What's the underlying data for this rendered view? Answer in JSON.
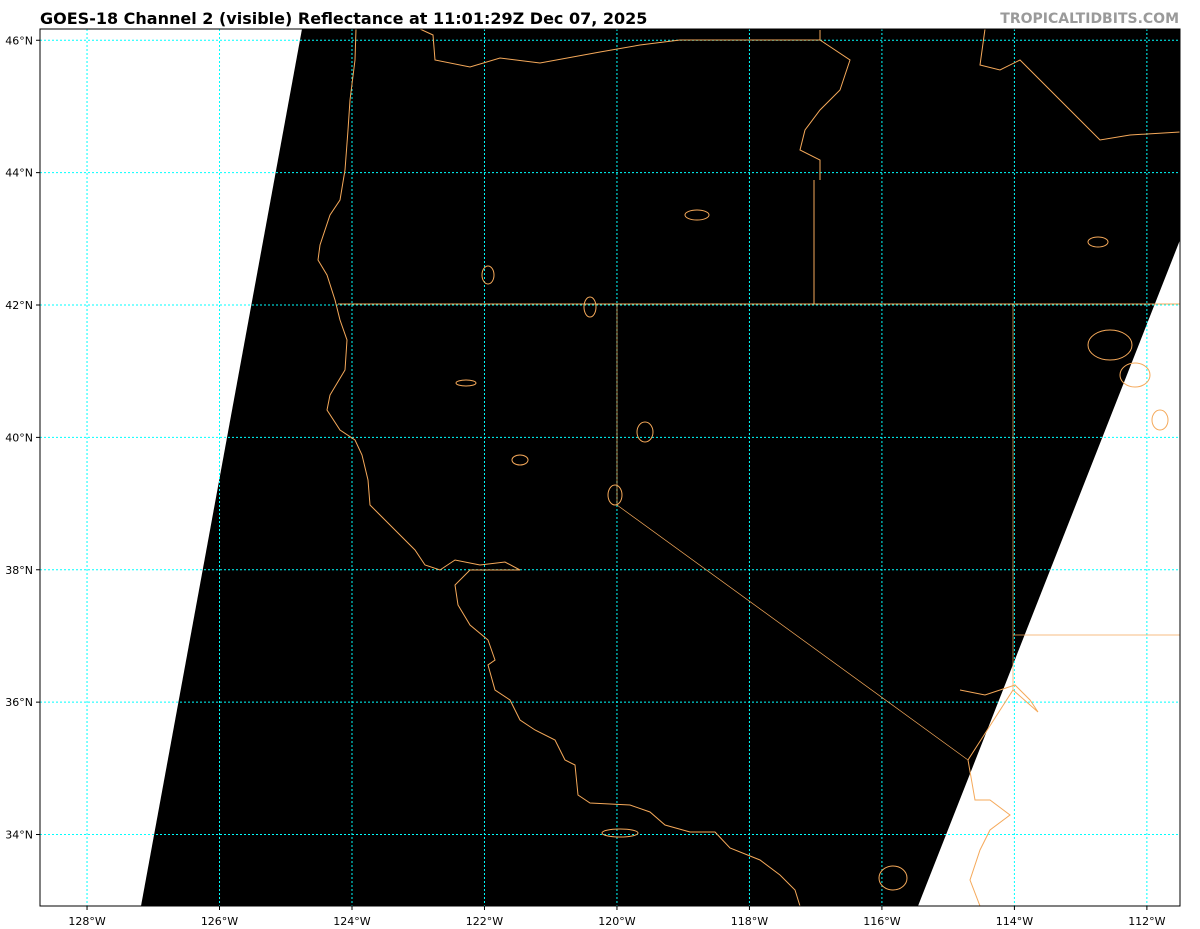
{
  "header": {
    "title": "GOES-18 Channel 2 (visible) Reflectance at 11:01:29Z Dec 07, 2025",
    "credit": "TROPICALTIDBITS.COM"
  },
  "map": {
    "extent_lon": [
      -128.71,
      -111.5
    ],
    "extent_lat": [
      32.92,
      46.17
    ],
    "lon_ticks": [
      -128,
      -126,
      -124,
      -122,
      -120,
      -118,
      -116,
      -114,
      -112
    ],
    "lon_labels": [
      "128°W",
      "126°W",
      "124°W",
      "122°W",
      "120°W",
      "118°W",
      "116°W",
      "114°W",
      "112°W"
    ],
    "lat_ticks": [
      46,
      44,
      42,
      40,
      38,
      36,
      34
    ],
    "lat_labels": [
      "46°N",
      "44°N",
      "42°N",
      "40°N",
      "38°N",
      "36°N",
      "34°N"
    ],
    "colors": {
      "gridline": "#00ffff",
      "coastline": "#f5a95a",
      "border": "#f5a95a",
      "imagery": "#000000",
      "no_data": "#ffffff"
    }
  }
}
